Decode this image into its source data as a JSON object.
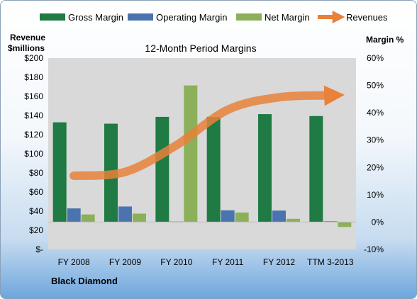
{
  "chart_data": {
    "type": "bar",
    "title": "12-Month Period Margins",
    "left_axis_label_line1": "Revenue",
    "left_axis_label_line2": "$millions",
    "right_axis_label": "Margin %",
    "footer": "Black Diamond",
    "categories": [
      "FY 2008",
      "FY 2009",
      "FY 2010",
      "FY 2011",
      "FY 2012",
      "TTM 3-2013"
    ],
    "left_ticks": [
      "$-",
      "$20",
      "$40",
      "$60",
      "$80",
      "$100",
      "$120",
      "$140",
      "$160",
      "$180",
      "$200"
    ],
    "right_ticks": [
      "-10%",
      "0%",
      "10%",
      "20%",
      "30%",
      "40%",
      "50%",
      "60%"
    ],
    "left_ylim": [
      0,
      200
    ],
    "right_ylim": [
      -10,
      60
    ],
    "grid": false,
    "legend_position": "top",
    "series": [
      {
        "name": "Gross Margin",
        "axis": "right",
        "kind": "bar",
        "color": "#1f7a43",
        "values": [
          36.5,
          36.0,
          38.5,
          38.5,
          39.5,
          38.8
        ]
      },
      {
        "name": "Operating Margin",
        "axis": "right",
        "kind": "bar",
        "color": "#4a74ad",
        "values": [
          5.0,
          5.7,
          0.2,
          4.3,
          4.2,
          0.3
        ]
      },
      {
        "name": "Net Margin",
        "axis": "right",
        "kind": "bar",
        "color": "#8cb05a",
        "values": [
          2.8,
          3.1,
          50.0,
          3.5,
          1.2,
          -1.8
        ]
      },
      {
        "name": "Revenues",
        "axis": "left",
        "kind": "line",
        "color": "#e8813a",
        "values": [
          77,
          81,
          109,
          146,
          159,
          161
        ]
      }
    ]
  }
}
